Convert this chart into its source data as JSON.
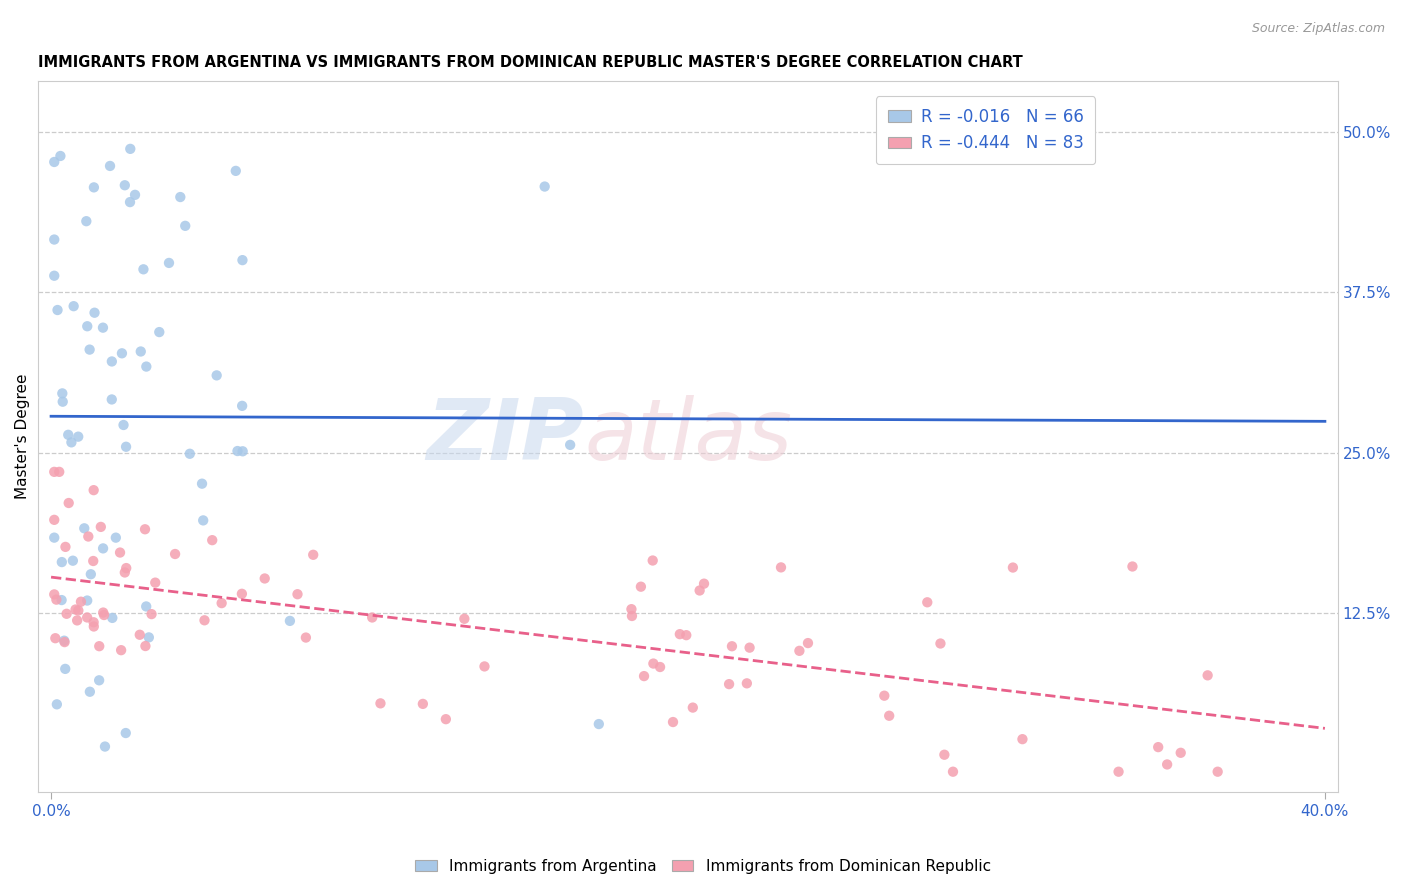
{
  "title": "IMMIGRANTS FROM ARGENTINA VS IMMIGRANTS FROM DOMINICAN REPUBLIC MASTER'S DEGREE CORRELATION CHART",
  "source": "Source: ZipAtlas.com",
  "ylabel": "Master's Degree",
  "right_yticks": [
    "50.0%",
    "37.5%",
    "25.0%",
    "12.5%"
  ],
  "right_ytick_vals": [
    0.5,
    0.375,
    0.25,
    0.125
  ],
  "argentina_color": "#a8c8e8",
  "dominican_color": "#f4a0b0",
  "argentina_line_color": "#3366cc",
  "dominican_line_color": "#e8608a",
  "argentina_R": -0.016,
  "argentina_N": 66,
  "dominican_R": -0.444,
  "dominican_N": 83,
  "xlim_max": 0.4,
  "ylim_max": 0.54,
  "ylim_min": -0.015
}
